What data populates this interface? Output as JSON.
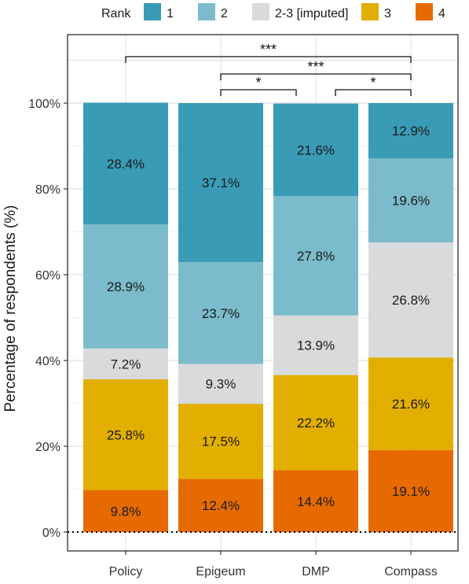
{
  "chart_data": {
    "type": "bar",
    "stacked": true,
    "percent_stacked": true,
    "categories": [
      "Policy",
      "Epigeum",
      "DMP",
      "Compass"
    ],
    "ylabel": "Percentage of respondents (%)",
    "xlabel": "",
    "ylim": [
      0,
      100
    ],
    "y_ticks": [
      0,
      20,
      40,
      60,
      80,
      100
    ],
    "y_tick_labels": [
      "0%",
      "20%",
      "40%",
      "60%",
      "80%",
      "100%"
    ],
    "grid": true,
    "legend": {
      "title": "Rank",
      "position": "top"
    },
    "series": [
      {
        "name": "4",
        "color": "#E66A00",
        "values": [
          9.8,
          12.4,
          14.4,
          19.1
        ],
        "labels": [
          "9.8%",
          "12.4%",
          "14.4%",
          "19.1%"
        ]
      },
      {
        "name": "3",
        "color": "#E2AE00",
        "values": [
          25.8,
          17.5,
          22.2,
          21.6
        ],
        "labels": [
          "25.8%",
          "17.5%",
          "22.2%",
          "21.6%"
        ]
      },
      {
        "name": "2-3 [imputed]",
        "color": "#D8DADC",
        "values": [
          7.2,
          9.3,
          13.9,
          26.8
        ],
        "labels": [
          "7.2%",
          "9.3%",
          "13.9%",
          "26.8%"
        ]
      },
      {
        "name": "2",
        "color": "#7BBBCB",
        "values": [
          28.9,
          23.7,
          27.8,
          19.6
        ],
        "labels": [
          "28.9%",
          "23.7%",
          "27.8%",
          "19.6%"
        ]
      },
      {
        "name": "1",
        "color": "#3A9BB6",
        "values": [
          28.4,
          37.1,
          21.6,
          12.9
        ],
        "labels": [
          "28.4%",
          "37.1%",
          "21.6%",
          "12.9%"
        ]
      }
    ],
    "legend_order": [
      "1",
      "2",
      "2-3 [imputed]",
      "3",
      "4"
    ],
    "significance": [
      {
        "from": "Policy",
        "to": "Compass",
        "label": "***"
      },
      {
        "from": "Epigeum",
        "to": "Compass",
        "label": "***"
      },
      {
        "from": "Epigeum",
        "to": "DMP",
        "label": "*"
      },
      {
        "from": "DMP",
        "to": "Compass",
        "label": "*"
      }
    ],
    "reference_line": {
      "y": 0,
      "style": "dotted"
    }
  }
}
